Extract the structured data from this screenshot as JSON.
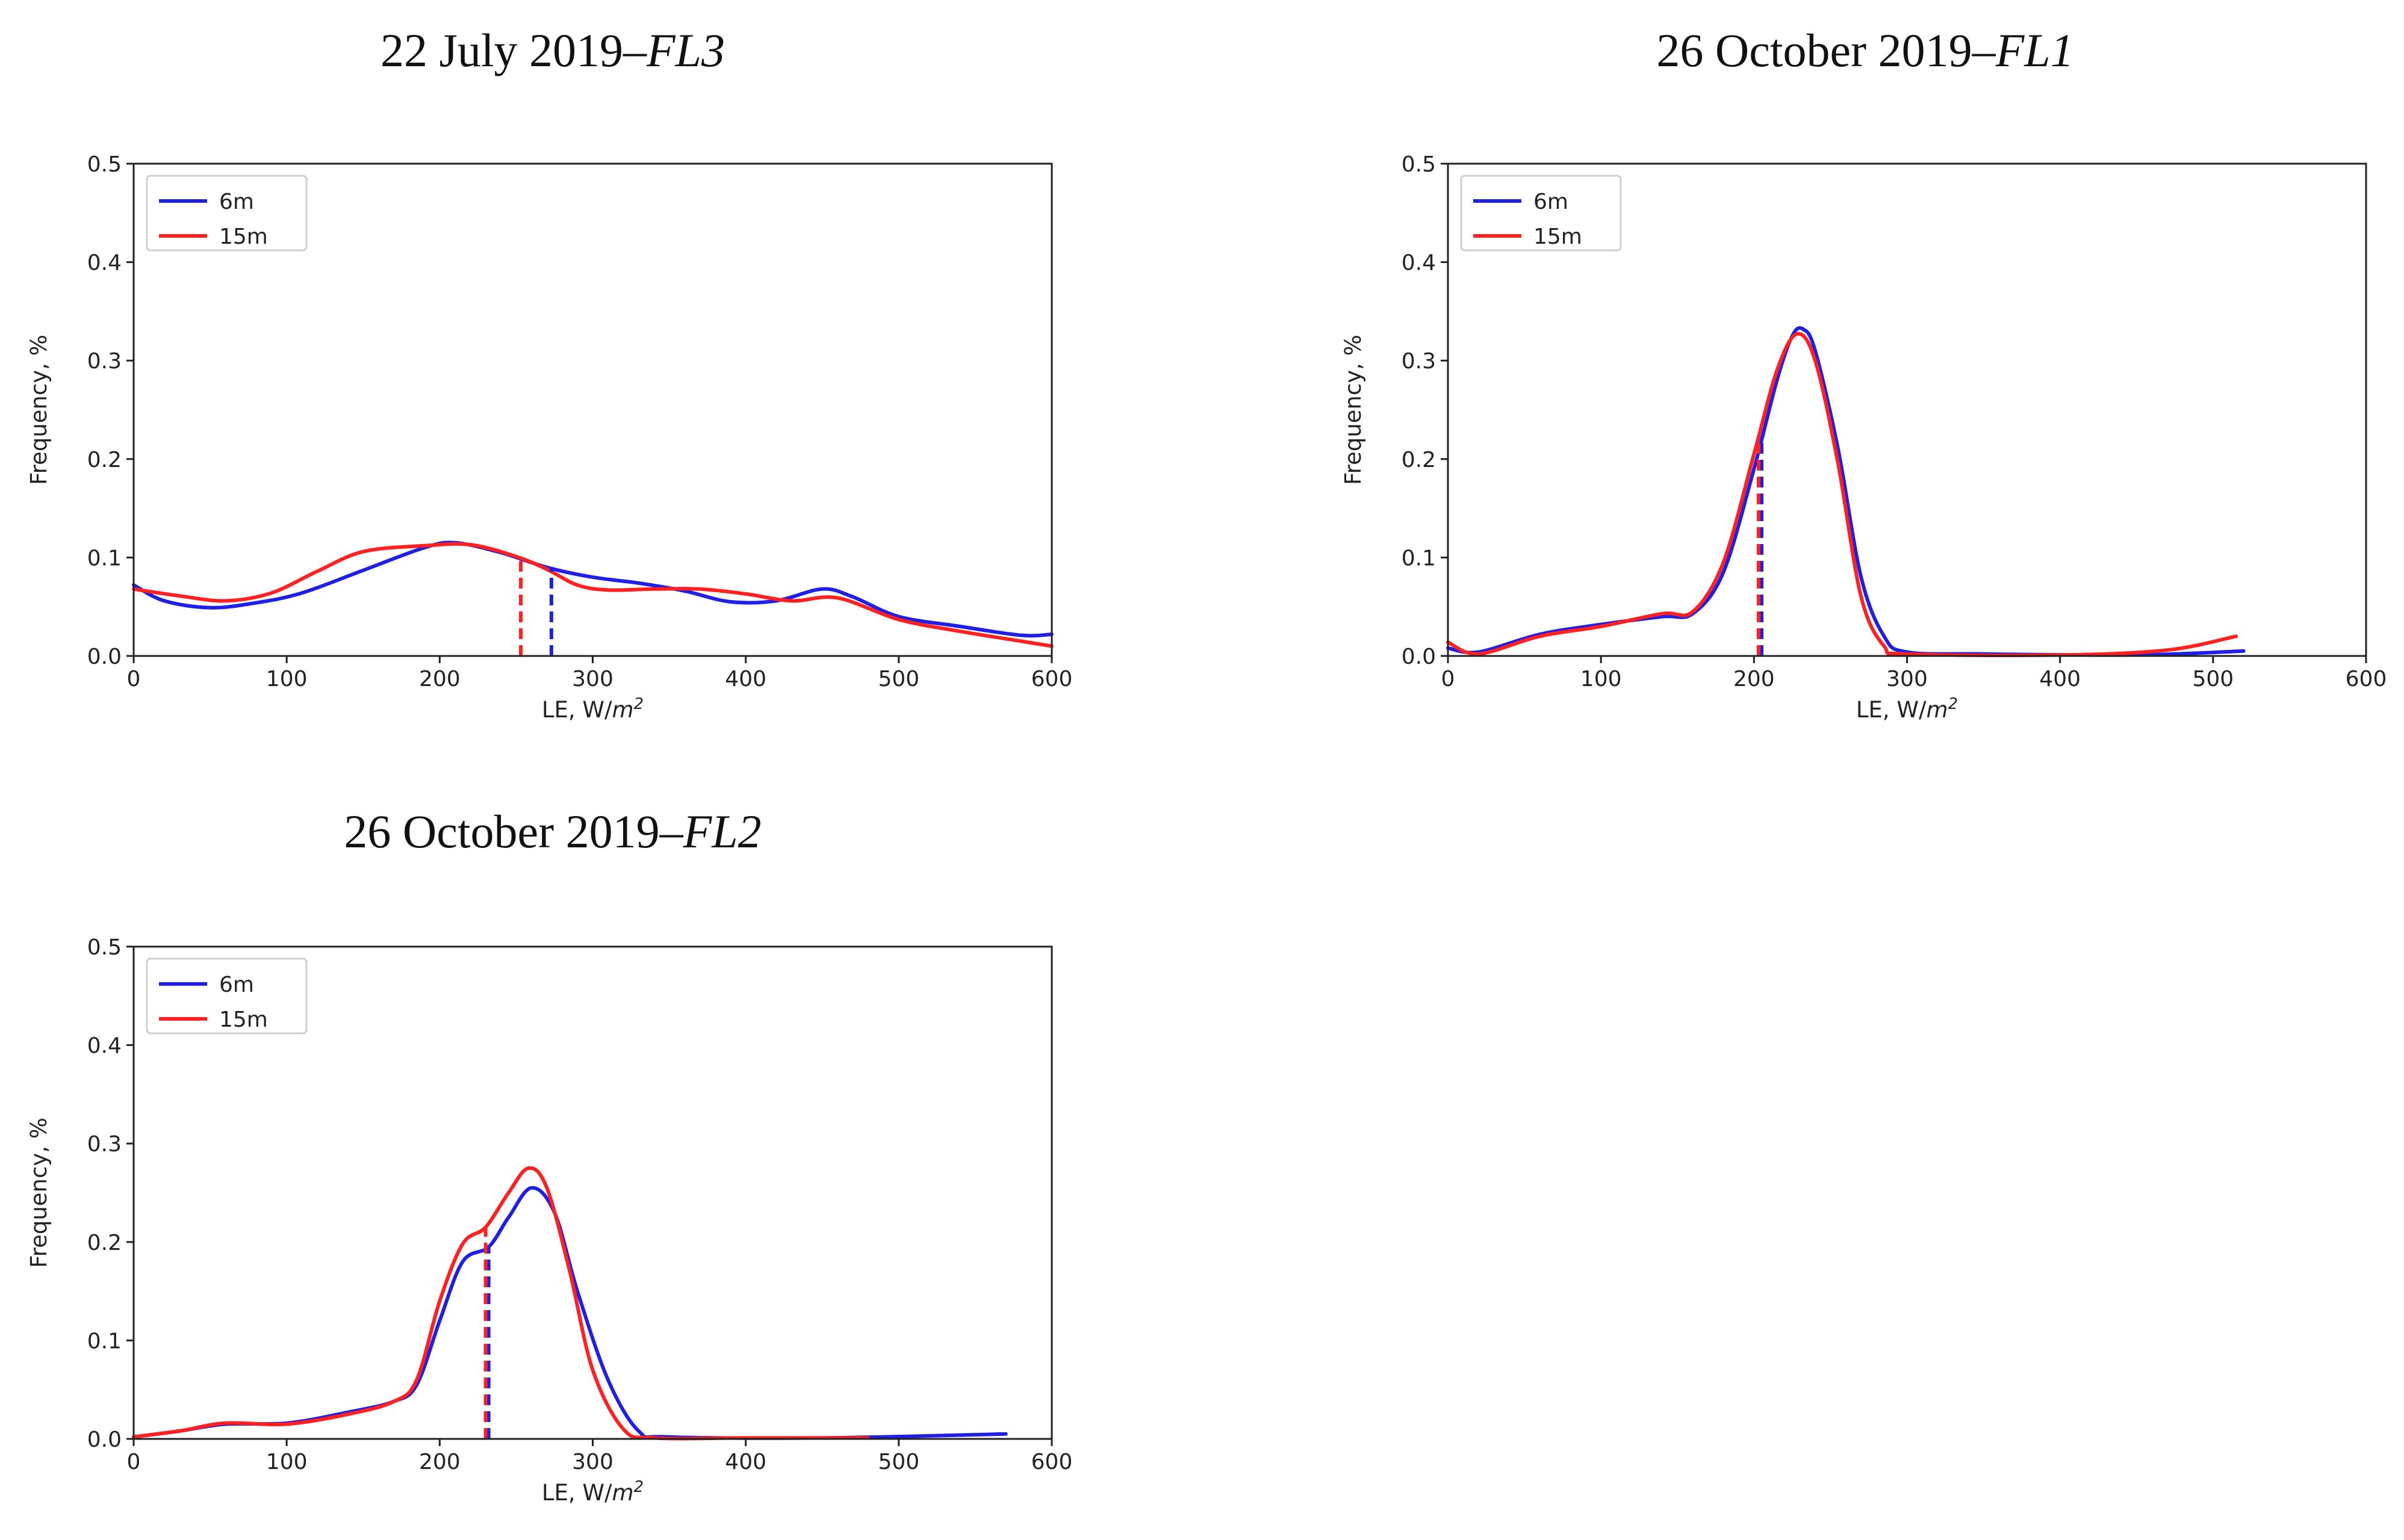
{
  "colors": {
    "6m": "#1f1fe6",
    "15m": "#ff2020"
  },
  "axis_labels": {
    "x": "LE, W/",
    "x_unit": "m",
    "x_exp": "2",
    "y": "Frequency, %"
  },
  "chart_data": [
    {
      "type": "line",
      "title": "22 July 2019–",
      "title_italic": "FL3",
      "xlabel": "LE, W/m²",
      "ylabel": "Frequency, %",
      "xlim": [
        0,
        600
      ],
      "ylim": [
        0,
        0.5
      ],
      "xticks": [
        "0",
        "100",
        "200",
        "300",
        "400",
        "500",
        "600"
      ],
      "yticks": [
        "0.0",
        "0.1",
        "0.2",
        "0.3",
        "0.4",
        "0.5"
      ],
      "legend": [
        "6m",
        "15m"
      ],
      "legend_position": "top-left",
      "series": [
        {
          "name": "6m",
          "x": [
            0,
            20,
            50,
            80,
            110,
            150,
            190,
            210,
            240,
            270,
            300,
            330,
            360,
            390,
            420,
            450,
            470,
            500,
            540,
            580,
            600
          ],
          "y": [
            0.072,
            0.056,
            0.049,
            0.054,
            0.064,
            0.087,
            0.11,
            0.115,
            0.105,
            0.09,
            0.08,
            0.074,
            0.066,
            0.055,
            0.056,
            0.068,
            0.06,
            0.04,
            0.03,
            0.021,
            0.022
          ]
        },
        {
          "name": "15m",
          "x": [
            0,
            30,
            60,
            90,
            120,
            150,
            190,
            220,
            250,
            270,
            290,
            310,
            340,
            370,
            400,
            430,
            460,
            500,
            540,
            580,
            600
          ],
          "y": [
            0.068,
            0.061,
            0.056,
            0.064,
            0.086,
            0.106,
            0.112,
            0.113,
            0.101,
            0.088,
            0.072,
            0.067,
            0.068,
            0.068,
            0.063,
            0.056,
            0.059,
            0.037,
            0.025,
            0.015,
            0.01
          ]
        }
      ],
      "means": [
        {
          "series": "6m",
          "x": 273
        },
        {
          "series": "15m",
          "x": 253
        }
      ]
    },
    {
      "type": "line",
      "title": "26 October 2019–",
      "title_italic": "FL1",
      "xlabel": "LE, W/m²",
      "ylabel": "Frequency, %",
      "xlim": [
        0,
        600
      ],
      "ylim": [
        0,
        0.5
      ],
      "xticks": [
        "0",
        "100",
        "200",
        "300",
        "400",
        "500",
        "600"
      ],
      "yticks": [
        "0.0",
        "0.1",
        "0.2",
        "0.3",
        "0.4",
        "0.5"
      ],
      "legend": [
        "6m",
        "15m"
      ],
      "legend_position": "top-left",
      "series": [
        {
          "name": "6m",
          "x": [
            0,
            20,
            60,
            100,
            140,
            160,
            180,
            200,
            215,
            225,
            232,
            240,
            255,
            270,
            285,
            300,
            350,
            450,
            520
          ],
          "y": [
            0.008,
            0.004,
            0.022,
            0.032,
            0.04,
            0.043,
            0.085,
            0.19,
            0.28,
            0.325,
            0.332,
            0.31,
            0.21,
            0.08,
            0.02,
            0.004,
            0.002,
            0.001,
            0.005
          ]
        },
        {
          "name": "15m",
          "x": [
            0,
            20,
            60,
            100,
            140,
            160,
            180,
            200,
            215,
            228,
            240,
            255,
            270,
            285,
            300,
            400,
            470,
            515
          ],
          "y": [
            0.014,
            0.002,
            0.02,
            0.03,
            0.043,
            0.045,
            0.095,
            0.205,
            0.29,
            0.327,
            0.3,
            0.195,
            0.06,
            0.01,
            0.002,
            0.001,
            0.006,
            0.02
          ]
        }
      ],
      "means": [
        {
          "series": "6m",
          "x": 205
        },
        {
          "series": "15m",
          "x": 203
        }
      ]
    },
    {
      "type": "line",
      "title": "26 October 2019–",
      "title_italic": "FL2",
      "xlabel": "LE, W/m²",
      "ylabel": "Frequency, %",
      "xlim": [
        0,
        600
      ],
      "ylim": [
        0,
        0.5
      ],
      "xticks": [
        "0",
        "100",
        "200",
        "300",
        "400",
        "500",
        "600"
      ],
      "yticks": [
        "0.0",
        "0.1",
        "0.2",
        "0.3",
        "0.4",
        "0.5"
      ],
      "legend": [
        "6m",
        "15m"
      ],
      "legend_position": "top-left",
      "series": [
        {
          "name": "6m",
          "x": [
            0,
            30,
            60,
            100,
            140,
            170,
            185,
            200,
            215,
            232,
            245,
            260,
            275,
            290,
            310,
            330,
            350,
            450,
            570
          ],
          "y": [
            0.002,
            0.008,
            0.015,
            0.016,
            0.027,
            0.038,
            0.055,
            0.12,
            0.18,
            0.195,
            0.225,
            0.255,
            0.23,
            0.15,
            0.06,
            0.008,
            0.002,
            0.001,
            0.005
          ]
        },
        {
          "name": "15m",
          "x": [
            0,
            30,
            60,
            100,
            140,
            170,
            185,
            200,
            215,
            230,
            245,
            258,
            270,
            285,
            300,
            320,
            340,
            400,
            480
          ],
          "y": [
            0.002,
            0.008,
            0.016,
            0.015,
            0.025,
            0.038,
            0.06,
            0.14,
            0.198,
            0.215,
            0.25,
            0.275,
            0.255,
            0.17,
            0.07,
            0.01,
            0.001,
            0.001,
            0.001
          ]
        }
      ],
      "means": [
        {
          "series": "6m",
          "x": 232
        },
        {
          "series": "15m",
          "x": 230
        }
      ]
    }
  ]
}
